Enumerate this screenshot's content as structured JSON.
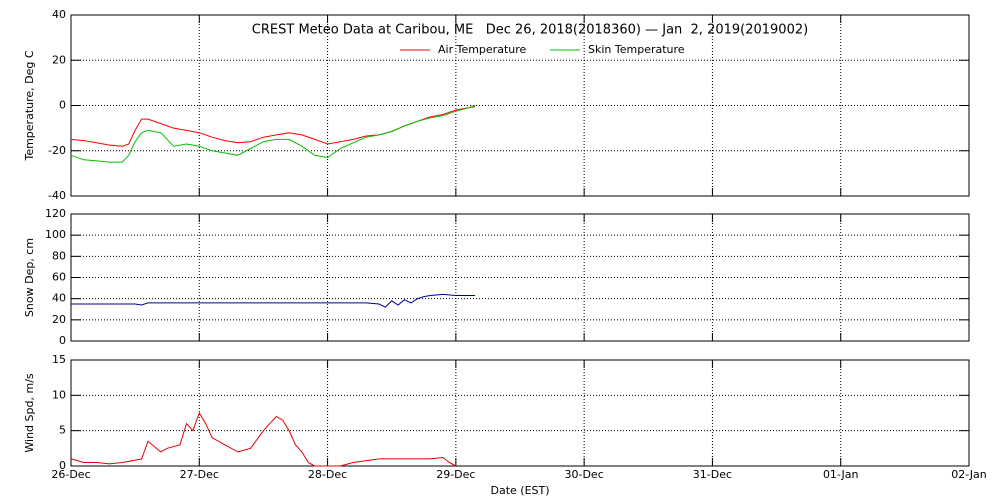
{
  "chart_data": [
    {
      "type": "line",
      "title": "CREST Meteo Data at Caribou, ME   Dec 26, 2018(2018360) — Jan  2, 2019(2019002)",
      "y_label": "Temperature, Deg C",
      "grid": true,
      "x": [
        0,
        0.1,
        0.2,
        0.3,
        0.4,
        0.45,
        0.5,
        0.55,
        0.6,
        0.7,
        0.8,
        0.9,
        1.0,
        1.1,
        1.2,
        1.3,
        1.4,
        1.5,
        1.6,
        1.7,
        1.8,
        1.9,
        2.0,
        2.1,
        2.2,
        2.3,
        2.4,
        2.5,
        2.6,
        2.7,
        2.8,
        2.9,
        3.0,
        3.1,
        3.15
      ],
      "xlim": [
        0,
        7
      ],
      "xticks": [
        0,
        1,
        2,
        3,
        4,
        5,
        6,
        7
      ],
      "ylim": [
        -40,
        40
      ],
      "yticks": [
        -40,
        -20,
        0,
        20,
        40
      ],
      "series": [
        {
          "name": "Air Temperature",
          "color": "#ff0000",
          "values": [
            -15,
            -15.5,
            -16.5,
            -17.5,
            -18,
            -17,
            -11,
            -6,
            -6,
            -8,
            -10,
            -11,
            -12,
            -14,
            -15.5,
            -16.5,
            -16,
            -14,
            -13,
            -12,
            -13,
            -15,
            -17,
            -16,
            -15,
            -13.5,
            -13,
            -11.5,
            -9,
            -7,
            -5,
            -4,
            -2,
            -1,
            -0.5
          ]
        },
        {
          "name": "Skin Temperature",
          "color": "#00c000",
          "values": [
            -22,
            -24,
            -24.5,
            -25,
            -25,
            -22,
            -16,
            -12,
            -11,
            -12,
            -18,
            -17,
            -18,
            -20,
            -21,
            -22,
            -19,
            -16,
            -15,
            -15,
            -18,
            -22,
            -23,
            -19,
            -16.5,
            -14,
            -13,
            -11.5,
            -9,
            -7,
            -5.5,
            -4.5,
            -2.5,
            -1,
            0
          ]
        }
      ]
    },
    {
      "type": "line",
      "y_label": "Snow Dep, cm",
      "grid": true,
      "x": [
        0,
        0.5,
        0.55,
        0.6,
        1,
        1.5,
        2,
        2.3,
        2.4,
        2.45,
        2.5,
        2.55,
        2.6,
        2.65,
        2.7,
        2.75,
        2.8,
        2.9,
        3.0,
        3.15
      ],
      "xlim": [
        0,
        7
      ],
      "xticks": [
        0,
        1,
        2,
        3,
        4,
        5,
        6,
        7
      ],
      "ylim": [
        0,
        120
      ],
      "yticks": [
        0,
        20,
        40,
        60,
        80,
        100,
        120
      ],
      "series": [
        {
          "color": "#000090",
          "values": [
            35,
            35,
            34,
            36,
            36,
            36,
            36,
            36,
            35,
            32,
            38,
            34,
            39,
            36,
            40,
            42,
            43,
            44,
            43,
            43
          ]
        }
      ]
    },
    {
      "type": "line",
      "y_label": "Wind Spd, m/s",
      "x_label": "Date (EST)",
      "grid": true,
      "x": [
        0,
        0.1,
        0.2,
        0.3,
        0.4,
        0.5,
        0.55,
        0.6,
        0.7,
        0.75,
        0.85,
        0.9,
        0.95,
        1.0,
        1.05,
        1.1,
        1.2,
        1.3,
        1.4,
        1.5,
        1.55,
        1.6,
        1.65,
        1.7,
        1.75,
        1.8,
        1.85,
        1.9,
        2.0,
        2.1,
        2.2,
        2.4,
        2.6,
        2.8,
        2.9,
        2.95,
        3.0
      ],
      "xlim": [
        0,
        7
      ],
      "xticks": [
        {
          "value": 0,
          "label": "26-Dec"
        },
        {
          "value": 1,
          "label": "27-Dec"
        },
        {
          "value": 2,
          "label": "28-Dec"
        },
        {
          "value": 3,
          "label": "29-Dec"
        },
        {
          "value": 4,
          "label": "30-Dec"
        },
        {
          "value": 5,
          "label": "31-Dec"
        },
        {
          "value": 6,
          "label": "01-Jan"
        },
        {
          "value": 7,
          "label": "02-Jan"
        }
      ],
      "ylim": [
        0,
        15
      ],
      "yticks": [
        0,
        5,
        10,
        15
      ],
      "series": [
        {
          "color": "#e00000",
          "values": [
            1,
            0.5,
            0.5,
            0.3,
            0.5,
            0.8,
            1,
            3.5,
            2,
            2.5,
            3,
            6,
            5,
            7.5,
            6,
            4,
            3,
            2,
            2.5,
            5,
            6,
            7,
            6.5,
            5,
            3,
            2,
            0.5,
            0,
            0,
            0,
            0.5,
            1,
            1,
            1,
            1.2,
            0.5,
            0
          ]
        }
      ]
    }
  ]
}
